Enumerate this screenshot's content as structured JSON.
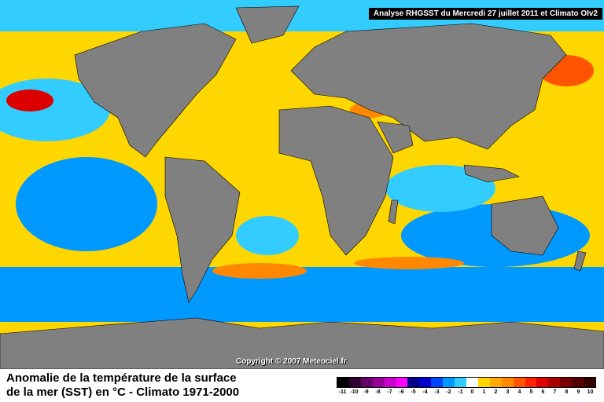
{
  "header": {
    "title": "Analyse RHGSST  du Mercredi 27 juillet 2011 et Climato OIv2"
  },
  "footer": {
    "copyright": "Copyright © 2007 Meteociel.fr",
    "caption_line1": "Anomalie de la température de la surface",
    "caption_line2": "de la mer (SST) en °C - Climato 1971-2000"
  },
  "legend": {
    "ticks": [
      "-11",
      "-10",
      "-9",
      "-8",
      "-7",
      "-6",
      "-5",
      "-4",
      "-3",
      "-2",
      "-1",
      "0",
      "1",
      "2",
      "3",
      "4",
      "5",
      "6",
      "7",
      "8",
      "9",
      "10"
    ],
    "colors": [
      "#000000",
      "#330033",
      "#660066",
      "#990099",
      "#cc00cc",
      "#ff00ff",
      "#000088",
      "#0000cc",
      "#0044ff",
      "#0099ff",
      "#33ccff",
      "#ffffff",
      "#ffd700",
      "#ffaa00",
      "#ff8800",
      "#ff5500",
      "#ff2200",
      "#dd0000",
      "#aa0000",
      "#770000",
      "#550000",
      "#330000"
    ]
  },
  "map_colors": {
    "land": "#808080",
    "ocean_neutral": "#ffd700",
    "cold": "#33ccff",
    "warm": "#ff8800"
  }
}
